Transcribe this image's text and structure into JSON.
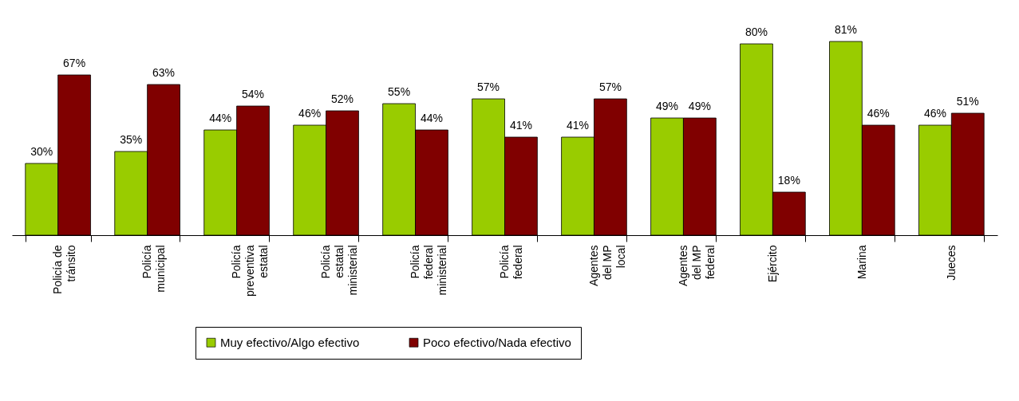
{
  "chart_data": {
    "type": "bar",
    "categories": [
      "Policía de\ntránsito",
      "Policía\nmunicipal",
      "Policía\npreventiva\nestatal",
      "Policía\nestatal\nministerial",
      "Policía\nfederal\nministerial",
      "Policía\nfederal",
      "Agentes\ndel MP\nlocal",
      "Agentes\ndel MP\nfederal",
      "Ejército",
      "Marina",
      "Jueces"
    ],
    "series": [
      {
        "name": "Muy efectivo/Algo efectivo",
        "color": "#99cc00",
        "values": [
          30,
          35,
          44,
          46,
          55,
          57,
          41,
          49,
          80,
          81,
          46
        ],
        "value_labels": [
          "30%",
          "35%",
          "44%",
          "46%",
          "55%",
          "57%",
          "41%",
          "49%",
          "80%",
          "81%",
          "46%"
        ]
      },
      {
        "name": "Poco efectivo/Nada efectivo",
        "color": "#800000",
        "values": [
          67,
          63,
          54,
          52,
          44,
          41,
          57,
          49,
          18,
          46,
          51
        ],
        "value_labels": [
          "67%",
          "63%",
          "54%",
          "52%",
          "44%",
          "41%",
          "57%",
          "49%",
          "18%",
          "46%",
          "51%"
        ]
      }
    ],
    "legend": "bottom"
  }
}
